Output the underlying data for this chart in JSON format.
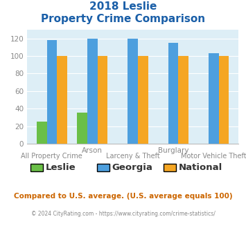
{
  "title_line1": "2018 Leslie",
  "title_line2": "Property Crime Comparison",
  "groups": [
    "All Property Crime",
    "Arson",
    "Larceny & Theft",
    "Burglary",
    "Motor Vehicle Theft"
  ],
  "label_row1": [
    "",
    "Arson",
    "",
    "Burglary",
    ""
  ],
  "label_row2": [
    "All Property Crime",
    "",
    "Larceny & Theft",
    "",
    "Motor Vehicle Theft"
  ],
  "series": {
    "Leslie": [
      25,
      35,
      0,
      0,
      0
    ],
    "Georgia": [
      118,
      120,
      120,
      115,
      103
    ],
    "National": [
      100,
      100,
      100,
      100,
      100
    ]
  },
  "colors": {
    "Leslie": "#6abf47",
    "Georgia": "#4d9fde",
    "National": "#f5a623"
  },
  "ylim": [
    0,
    130
  ],
  "yticks": [
    0,
    20,
    40,
    60,
    80,
    100,
    120
  ],
  "background_color": "#ddeef6",
  "grid_color": "#ffffff",
  "title_color": "#1a5fa8",
  "tick_color": "#888888",
  "xlabel_color": "#888888",
  "footnote1": "Compared to U.S. average. (U.S. average equals 100)",
  "footnote2": "© 2024 CityRating.com - https://www.cityrating.com/crime-statistics/",
  "footnote1_color": "#cc6600",
  "footnote2_color": "#888888",
  "bar_width": 0.25,
  "figsize": [
    3.55,
    3.3
  ],
  "dpi": 100
}
